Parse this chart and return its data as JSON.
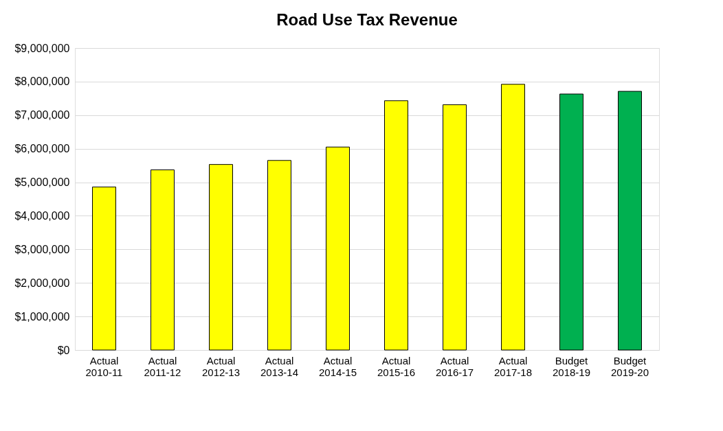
{
  "chart_data": {
    "type": "bar",
    "title": "Road Use Tax Revenue",
    "categories": [
      "Actual 2010-11",
      "Actual 2011-12",
      "Actual 2012-13",
      "Actual 2013-14",
      "Actual 2014-15",
      "Actual 2015-16",
      "Actual 2016-17",
      "Actual 2017-18",
      "Budget 2018-19",
      "Budget 2019-20"
    ],
    "values": [
      4860000,
      5370000,
      5530000,
      5650000,
      6050000,
      7430000,
      7310000,
      7920000,
      7630000,
      7710000
    ],
    "colors": [
      "#ffff00",
      "#ffff00",
      "#ffff00",
      "#ffff00",
      "#ffff00",
      "#ffff00",
      "#ffff00",
      "#ffff00",
      "#00b050",
      "#00b050"
    ],
    "ylim": [
      0,
      9000000
    ],
    "yticks": [
      {
        "value": 0,
        "label": "$0"
      },
      {
        "value": 1000000,
        "label": "$1,000,000"
      },
      {
        "value": 2000000,
        "label": "$2,000,000"
      },
      {
        "value": 3000000,
        "label": "$3,000,000"
      },
      {
        "value": 4000000,
        "label": "$4,000,000"
      },
      {
        "value": 5000000,
        "label": "$5,000,000"
      },
      {
        "value": 6000000,
        "label": "$6,000,000"
      },
      {
        "value": 7000000,
        "label": "$7,000,000"
      },
      {
        "value": 8000000,
        "label": "$8,000,000"
      },
      {
        "value": 9000000,
        "label": "$9,000,000"
      }
    ],
    "grid": "y"
  }
}
